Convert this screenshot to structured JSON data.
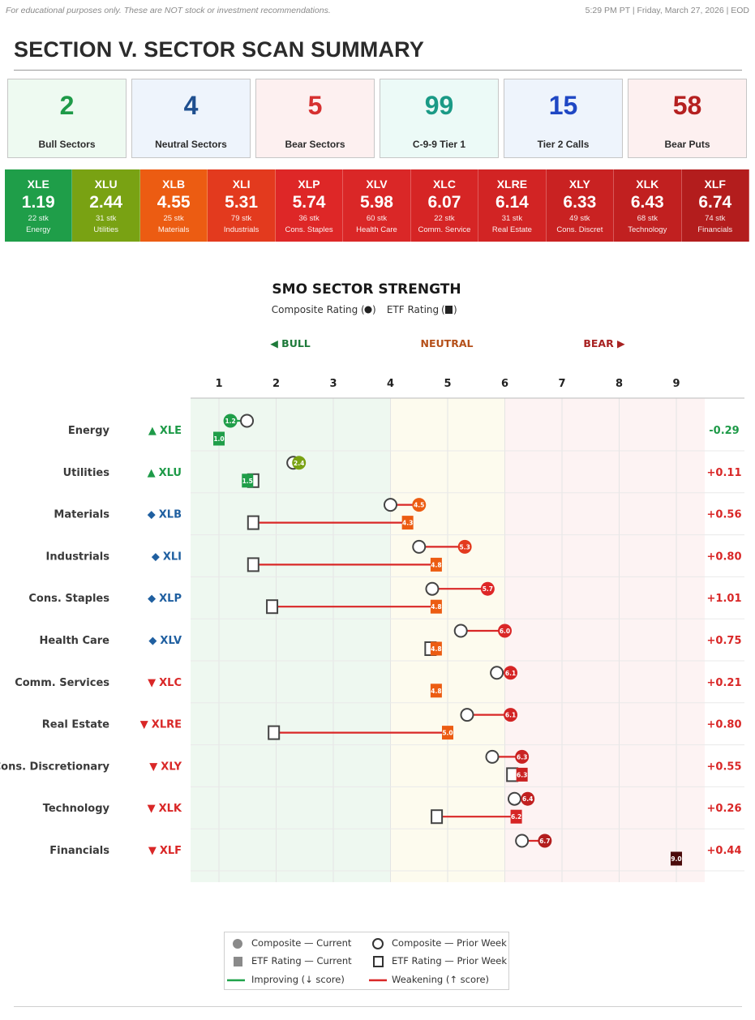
{
  "header": {
    "disclaimer": "For educational purposes only. These are NOT stock or investment recommendations.",
    "timestamp": "5:29 PM PT  |  Friday, March 27, 2026  |  EOD",
    "section_title": "SECTION V. SECTOR SCAN SUMMARY"
  },
  "summary_cards": [
    {
      "value": "2",
      "label": "Bull Sectors",
      "color": "#1e9a48",
      "bg": "#eefaf1"
    },
    {
      "value": "4",
      "label": "Neutral Sectors",
      "color": "#1f4f8f",
      "bg": "#eef4fc"
    },
    {
      "value": "5",
      "label": "Bear Sectors",
      "color": "#d63030",
      "bg": "#fdf0f0"
    },
    {
      "value": "99",
      "label": "C-9-9 Tier 1",
      "color": "#1a9a86",
      "bg": "#ecfaf7"
    },
    {
      "value": "15",
      "label": "Tier 2 Calls",
      "color": "#1f47c4",
      "bg": "#eef4fc"
    },
    {
      "value": "58",
      "label": "Bear Puts",
      "color": "#b52020",
      "bg": "#fdf0f0"
    }
  ],
  "sector_tiles": [
    {
      "ticker": "XLE",
      "score": "1.19",
      "count": "22 stk",
      "name": "Energy",
      "color": "#1f9e49"
    },
    {
      "ticker": "XLU",
      "score": "2.44",
      "count": "31 stk",
      "name": "Utilities",
      "color": "#79a213"
    },
    {
      "ticker": "XLB",
      "score": "4.55",
      "count": "25 stk",
      "name": "Materials",
      "color": "#ec5c12"
    },
    {
      "ticker": "XLI",
      "score": "5.31",
      "count": "79 stk",
      "name": "Industrials",
      "color": "#e33a1e"
    },
    {
      "ticker": "XLP",
      "score": "5.74",
      "count": "36 stk",
      "name": "Cons. Staples",
      "color": "#de2727"
    },
    {
      "ticker": "XLV",
      "score": "5.98",
      "count": "60 stk",
      "name": "Health Care",
      "color": "#da2727"
    },
    {
      "ticker": "XLC",
      "score": "6.07",
      "count": "22 stk",
      "name": "Comm. Service",
      "color": "#d62525"
    },
    {
      "ticker": "XLRE",
      "score": "6.14",
      "count": "31 stk",
      "name": "Real Estate",
      "color": "#d22424"
    },
    {
      "ticker": "XLY",
      "score": "6.33",
      "count": "49 stk",
      "name": "Cons. Discret",
      "color": "#c92222"
    },
    {
      "ticker": "XLK",
      "score": "6.43",
      "count": "68 stk",
      "name": "Technology",
      "color": "#c12020"
    },
    {
      "ticker": "XLF",
      "score": "6.74",
      "count": "74 stk",
      "name": "Financials",
      "color": "#b31d1d"
    }
  ],
  "chart_data": {
    "type": "scatter",
    "title": "SMO SECTOR STRENGTH",
    "subtitle_composite": "Composite Rating",
    "subtitle_etf": "ETF Rating",
    "zones": [
      {
        "label": "◀ BULL",
        "from": 0.5,
        "to": 4,
        "label_color": "#1e7a3a",
        "fill": "#eef8f0"
      },
      {
        "label": "NEUTRAL",
        "from": 4,
        "to": 6,
        "label_color": "#b5501a",
        "fill": "#fdfbee"
      },
      {
        "label": "BEAR ▶",
        "from": 6,
        "to": 9.5,
        "label_color": "#a82222",
        "fill": "#fdf3f3"
      }
    ],
    "xlim": [
      0.5,
      9.5
    ],
    "x_ticks": [
      1,
      2,
      3,
      4,
      5,
      6,
      7,
      8,
      9
    ],
    "grid": true,
    "colors": {
      "improving": "#1fa34a",
      "weakening": "#d92727",
      "prior_stroke": "#444444"
    },
    "sectors": [
      {
        "name": "Energy",
        "symbol": "▲",
        "ticker": "XLE",
        "ticker_color": "#1e9a48",
        "composite": 1.2,
        "composite_prior": 1.49,
        "etf": 1.0,
        "etf_prior": null,
        "change": "-0.29",
        "change_color": "#1e9a48",
        "comp_color": "#1f9e49",
        "etf_color": "#1f9e49"
      },
      {
        "name": "Utilities",
        "symbol": "▲",
        "ticker": "XLU",
        "ticker_color": "#1e9a48",
        "composite": 2.4,
        "composite_prior": 2.3,
        "etf": 1.5,
        "etf_prior": 1.6,
        "change": "+0.11",
        "change_color": "#d92727",
        "comp_color": "#79a213",
        "etf_color": "#1f9e49"
      },
      {
        "name": "Materials",
        "symbol": "◆",
        "ticker": "XLB",
        "ticker_color": "#1f5fa0",
        "composite": 4.5,
        "composite_prior": 4.0,
        "etf": 4.3,
        "etf_prior": 1.6,
        "change": "+0.56",
        "change_color": "#d92727",
        "comp_color": "#ec5c12",
        "etf_color": "#ec5c12"
      },
      {
        "name": "Industrials",
        "symbol": "◆",
        "ticker": "XLI",
        "ticker_color": "#1f5fa0",
        "composite": 5.3,
        "composite_prior": 4.5,
        "etf": 4.8,
        "etf_prior": 1.6,
        "change": "+0.80",
        "change_color": "#d92727",
        "comp_color": "#e33a1e",
        "etf_color": "#ec5c12"
      },
      {
        "name": "Cons. Staples",
        "symbol": "◆",
        "ticker": "XLP",
        "ticker_color": "#1f5fa0",
        "composite": 5.7,
        "composite_prior": 4.73,
        "etf": 4.8,
        "etf_prior": 1.93,
        "change": "+1.01",
        "change_color": "#d92727",
        "comp_color": "#de2727",
        "etf_color": "#ec5c12"
      },
      {
        "name": "Health Care",
        "symbol": "◆",
        "ticker": "XLV",
        "ticker_color": "#1f5fa0",
        "composite": 6.0,
        "composite_prior": 5.23,
        "etf": 4.8,
        "etf_prior": 4.7,
        "change": "+0.75",
        "change_color": "#d92727",
        "comp_color": "#da2727",
        "etf_color": "#ec5c12"
      },
      {
        "name": "Comm. Services",
        "symbol": "▼",
        "ticker": "XLC",
        "ticker_color": "#d92727",
        "composite": 6.1,
        "composite_prior": 5.86,
        "etf": 4.8,
        "etf_prior": null,
        "change": "+0.21",
        "change_color": "#d92727",
        "comp_color": "#d62525",
        "etf_color": "#ec5c12"
      },
      {
        "name": "Real Estate",
        "symbol": "▼",
        "ticker": "XLRE",
        "ticker_color": "#d92727",
        "composite": 6.1,
        "composite_prior": 5.34,
        "etf": 5.0,
        "etf_prior": 1.96,
        "change": "+0.80",
        "change_color": "#d92727",
        "comp_color": "#d22424",
        "etf_color": "#ec5c12"
      },
      {
        "name": "Cons. Discretionary",
        "symbol": "▼",
        "ticker": "XLY",
        "ticker_color": "#d92727",
        "composite": 6.3,
        "composite_prior": 5.78,
        "etf": 6.3,
        "etf_prior": 6.13,
        "change": "+0.55",
        "change_color": "#d92727",
        "comp_color": "#c92222",
        "etf_color": "#c92222"
      },
      {
        "name": "Technology",
        "symbol": "▼",
        "ticker": "XLK",
        "ticker_color": "#d92727",
        "composite": 6.4,
        "composite_prior": 6.17,
        "etf": 6.2,
        "etf_prior": 4.81,
        "change": "+0.26",
        "change_color": "#d92727",
        "comp_color": "#c12020",
        "etf_color": "#d62525"
      },
      {
        "name": "Financials",
        "symbol": "▼",
        "ticker": "XLF",
        "ticker_color": "#d92727",
        "composite": 6.7,
        "composite_prior": 6.3,
        "etf": 9.0,
        "etf_prior": null,
        "change": "+0.44",
        "change_color": "#d92727",
        "comp_color": "#b31d1d",
        "etf_color": "#4a0a0a"
      }
    ]
  },
  "legend": {
    "composite_current": "Composite — Current",
    "composite_prior": "Composite — Prior Week",
    "etf_current": "ETF Rating — Current",
    "etf_prior": "ETF Rating — Prior Week",
    "improving": "Improving (↓ score)",
    "weakening": "Weakening (↑ score)"
  }
}
